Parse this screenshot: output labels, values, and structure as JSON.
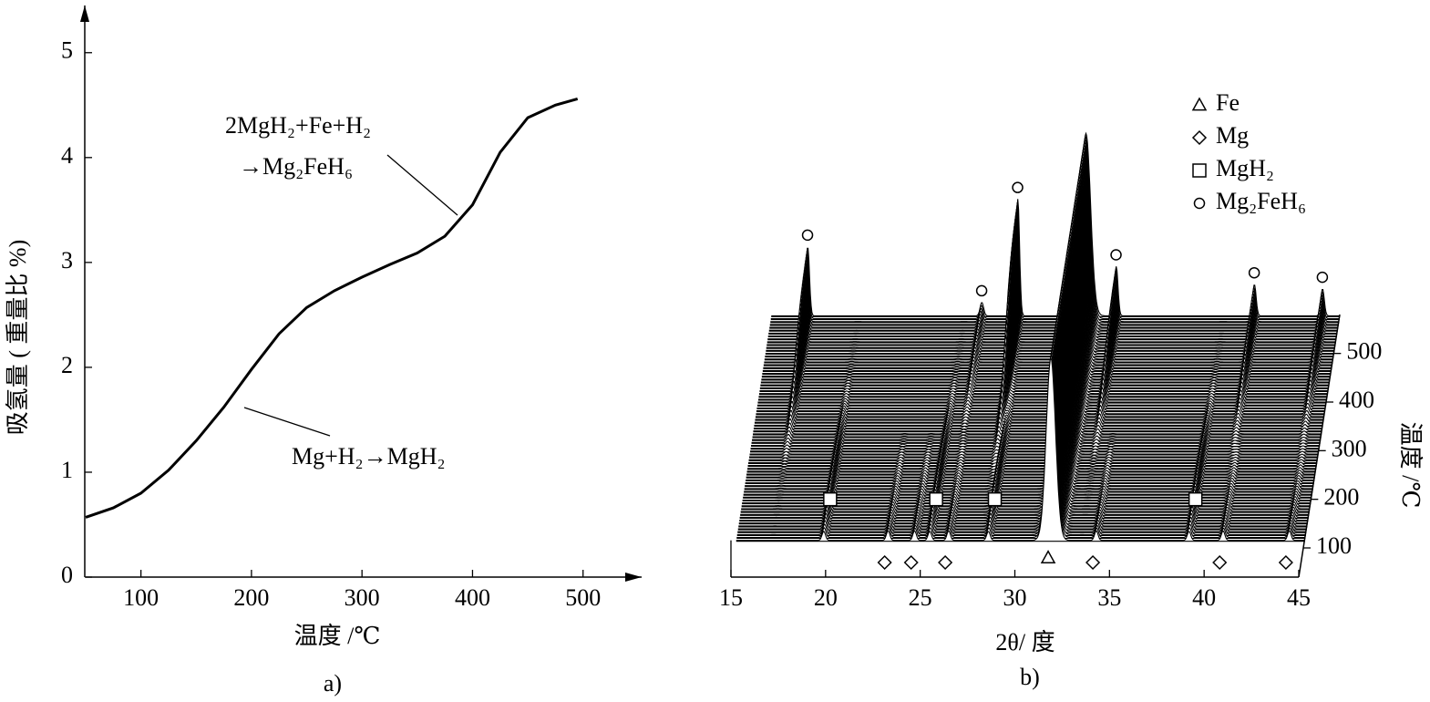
{
  "chart_data": [
    {
      "type": "line",
      "caption": "a)",
      "x_label": "温度 /℃",
      "y_label": "吸氢量 ( 重量比 %)",
      "xlim": [
        50,
        553
      ],
      "xticks": [
        100,
        200,
        300,
        400,
        500
      ],
      "ylim": [
        0,
        5.45
      ],
      "yticks": [
        0,
        1,
        2,
        3,
        4,
        5
      ],
      "x": [
        50,
        75,
        100,
        125,
        150,
        175,
        200,
        225,
        250,
        275,
        300,
        325,
        350,
        375,
        400,
        425,
        450,
        475,
        495
      ],
      "y": [
        0.57,
        0.66,
        0.8,
        1.02,
        1.3,
        1.62,
        1.98,
        2.32,
        2.57,
        2.73,
        2.86,
        2.98,
        3.09,
        3.25,
        3.55,
        4.05,
        4.38,
        4.5,
        4.56
      ],
      "color": "#000000",
      "annotations": [
        "2MgH₂+Fe+H₂",
        "→Mg₂FeH₆",
        "Mg+H₂→MgH₂"
      ]
    },
    {
      "type": "waterfall",
      "caption": "b)",
      "x_label": "2θ/ 度",
      "z_label": "温度 /℃",
      "xlim": [
        15,
        45
      ],
      "xticks": [
        15,
        20,
        25,
        30,
        35,
        40,
        45
      ],
      "zlim": [
        40,
        580
      ],
      "zticks": [
        100,
        200,
        300,
        400,
        500
      ],
      "series": [
        {
          "name": "Fe",
          "marker": "triangle",
          "z": 80,
          "x": [
            31.6
          ],
          "intensity": [
            200
          ]
        },
        {
          "name": "Mg",
          "marker": "diamond",
          "z": 70,
          "x": [
            23.0,
            24.4,
            26.2,
            34.0,
            40.7,
            44.2
          ],
          "intensity": [
            14,
            14,
            14,
            14,
            14,
            14
          ]
        },
        {
          "name": "MgH₂",
          "marker": "square",
          "z": 200,
          "x": [
            19.6,
            25.2,
            28.3,
            38.9
          ],
          "intensity": [
            20,
            20,
            20,
            20
          ]
        },
        {
          "name": "Mg₂FeH₆",
          "marker": "circle",
          "z": 575,
          "x": [
            16.9,
            26.1,
            28.0,
            33.2,
            40.5,
            44.1
          ],
          "intensity": [
            77,
            15,
            130,
            55,
            35,
            30
          ]
        }
      ]
    }
  ]
}
